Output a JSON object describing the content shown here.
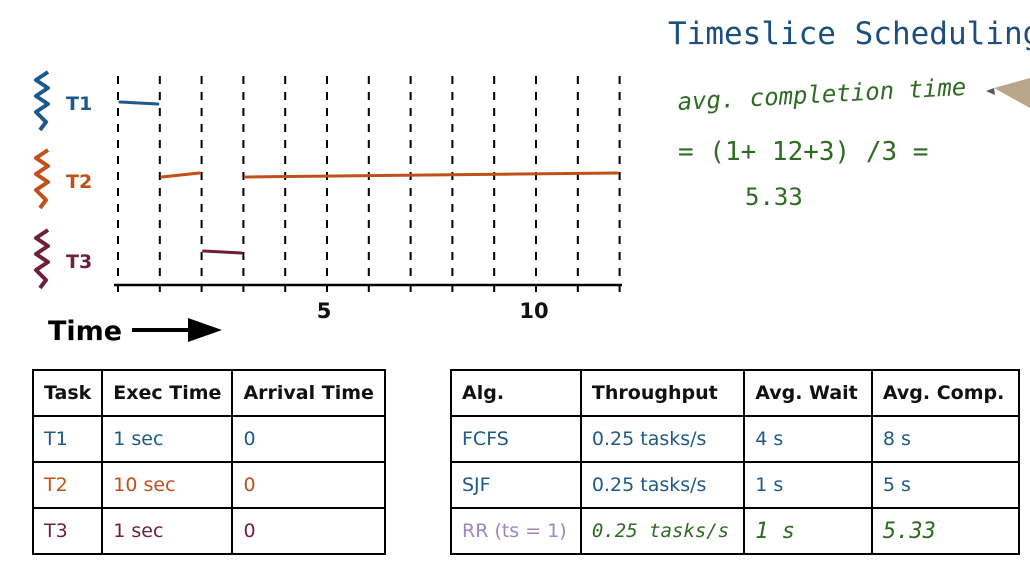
{
  "title": "Timeslice Scheduling",
  "formula": {
    "line1": "avg. completion time",
    "line2": "= (1+ 12+3) /3 =",
    "line3": "5.33"
  },
  "colors": {
    "t1": "#1c5a8a",
    "t2": "#c0501a",
    "t3": "#6e1f3a",
    "hand_green": "#2e6b22",
    "rr": "#9b86c2"
  },
  "timeline": {
    "task_labels": [
      "T1",
      "T2",
      "T3"
    ],
    "axis_ticks": [
      "5",
      "10"
    ],
    "time_label": "Time",
    "t_max": 12,
    "segments": [
      {
        "task": 0,
        "start": 0,
        "end": 1
      },
      {
        "task": 1,
        "start": 1,
        "end": 2
      },
      {
        "task": 2,
        "start": 2,
        "end": 3
      },
      {
        "task": 1,
        "start": 3,
        "end": 12
      }
    ]
  },
  "task_table": {
    "headers": [
      "Task",
      "Exec Time",
      "Arrival Time"
    ],
    "rows": [
      [
        "T1",
        "1 sec",
        "0"
      ],
      [
        "T2",
        "10 sec",
        "0"
      ],
      [
        "T3",
        "1 sec",
        "0"
      ]
    ]
  },
  "alg_table": {
    "headers": [
      "Alg.",
      "Throughput",
      "Avg. Wait",
      "Avg. Comp."
    ],
    "rows": [
      [
        "FCFS",
        "0.25 tasks/s",
        "4 s",
        "8 s"
      ],
      [
        "SJF",
        "0.25 tasks/s",
        "1 s",
        "5 s"
      ],
      [
        "RR (ts = 1)",
        "0.25 tasks/s",
        "1 s",
        "5.33"
      ]
    ]
  }
}
